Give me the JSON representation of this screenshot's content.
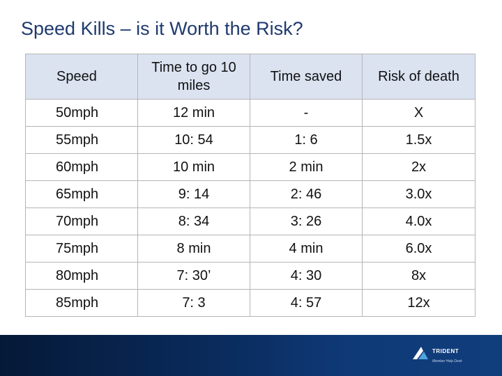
{
  "title": "Speed Kills – is it Worth the Risk?",
  "table": {
    "headers": [
      "Speed",
      "Time to go 10 miles",
      "Time saved",
      "Risk of death"
    ],
    "rows": [
      [
        "50mph",
        "12 min",
        "-",
        "X"
      ],
      [
        "55mph",
        "10: 54",
        "1: 6",
        "1.5x"
      ],
      [
        "60mph",
        "10 min",
        "2 min",
        "2x"
      ],
      [
        "65mph",
        "9: 14",
        "2: 46",
        "3.0x"
      ],
      [
        "70mph",
        "8: 34",
        "3: 26",
        "4.0x"
      ],
      [
        "75mph",
        "8 min",
        "4 min",
        "6.0x"
      ],
      [
        "80mph",
        "7: 30’",
        "4: 30",
        "8x"
      ],
      [
        "85mph",
        "7: 3",
        "4: 57",
        "12x"
      ]
    ]
  },
  "logo": {
    "name": "TRIDENT",
    "tagline": "Member Help Desk"
  },
  "colors": {
    "title": "#1f3a6e",
    "header_bg": "#dbe3f1",
    "footer": "#0a2c5e"
  }
}
